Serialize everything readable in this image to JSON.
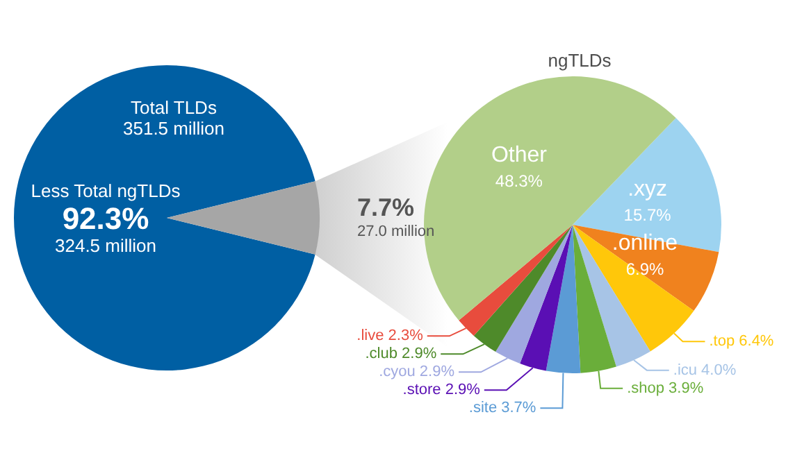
{
  "chart_data": [
    {
      "type": "pie",
      "title": "Total TLDs",
      "subtitle": "351.5 million",
      "categories": [
        "Less Total ngTLDs",
        null
      ],
      "values": [
        92.3,
        7.7
      ],
      "colors": [
        "#005fa3",
        "#a6a6a6"
      ],
      "value_labels": [
        "92.3%",
        "7.7%"
      ],
      "annotations": [
        "324.5 million",
        "27.0 million"
      ]
    },
    {
      "type": "pie",
      "title": "ngTLDs",
      "categories": [
        ".xyz",
        ".online",
        ".top",
        ".icu",
        ".shop",
        ".site",
        ".store",
        ".cyou",
        ".club",
        ".live",
        "Other"
      ],
      "values": [
        15.7,
        6.9,
        6.4,
        4.0,
        3.9,
        3.7,
        2.9,
        2.9,
        2.9,
        2.3,
        48.3
      ],
      "colors": [
        "#9dd3f0",
        "#f0821e",
        "#ffc70a",
        "#a7c4e6",
        "#6aae3a",
        "#5b9bd5",
        "#5a0fb4",
        "#9fa8e0",
        "#4e8a2a",
        "#e84c3d",
        "#b2cf89"
      ],
      "value_labels": [
        "15.7%",
        "6.9%",
        "6.4%",
        "4.0%",
        "3.9%",
        "3.7%",
        "2.9%",
        "2.9%",
        "2.9%",
        "2.3%",
        "48.3%"
      ]
    }
  ]
}
